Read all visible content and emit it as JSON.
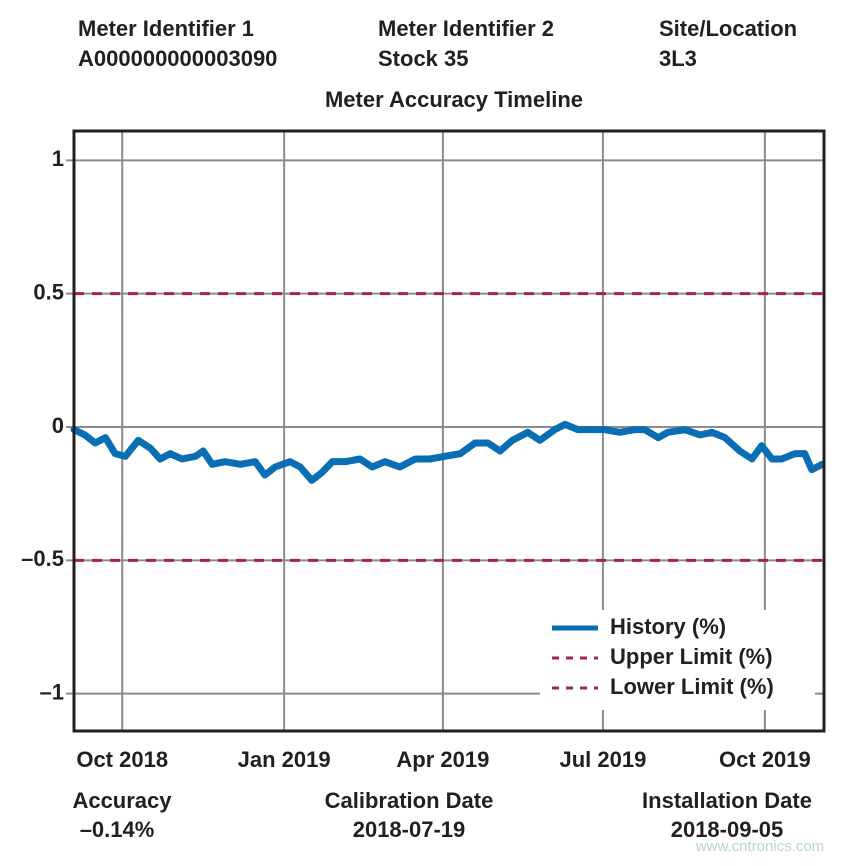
{
  "header": {
    "fields": [
      {
        "label": "Meter Identifier 1",
        "value": "A000000000003090"
      },
      {
        "label": "Meter Identifier 2",
        "value": "Stock 35"
      },
      {
        "label": "Site/Location",
        "value": "3L3"
      }
    ]
  },
  "chart_data": {
    "type": "line",
    "title": "Meter Accuracy Timeline",
    "xlim": [
      2018.673,
      2019.84
    ],
    "ylim": [
      -1.14,
      1.11
    ],
    "xticks": [
      {
        "value": 2018.748,
        "label": "Oct 2018"
      },
      {
        "value": 2019.0,
        "label": "Jan 2019"
      },
      {
        "value": 2019.247,
        "label": "Apr 2019"
      },
      {
        "value": 2019.496,
        "label": "Jul 2019"
      },
      {
        "value": 2019.748,
        "label": "Oct 2019"
      }
    ],
    "yticks": [
      {
        "value": -1,
        "label": "–1"
      },
      {
        "value": -0.5,
        "label": "–0.5"
      },
      0,
      0.5,
      1
    ],
    "grid": true,
    "legend": "lower right",
    "series": [
      {
        "name": "History (%)",
        "color": "#0a6eb4",
        "dash": false,
        "x": [
          2018.673,
          2018.69,
          2018.706,
          2018.722,
          2018.737,
          2018.753,
          2018.773,
          2018.792,
          2018.807,
          2018.823,
          2018.841,
          2018.862,
          2018.874,
          2018.888,
          2018.908,
          2018.932,
          2018.955,
          2018.97,
          2018.986,
          2019.009,
          2019.025,
          2019.043,
          2019.059,
          2019.075,
          2019.095,
          2019.118,
          2019.137,
          2019.157,
          2019.18,
          2019.204,
          2019.227,
          2019.25,
          2019.274,
          2019.297,
          2019.317,
          2019.336,
          2019.355,
          2019.379,
          2019.398,
          2019.421,
          2019.437,
          2019.457,
          2019.476,
          2019.499,
          2019.522,
          2019.545,
          2019.561,
          2019.582,
          2019.597,
          2019.624,
          2019.647,
          2019.666,
          2019.686,
          2019.709,
          2019.728,
          2019.743,
          2019.759,
          2019.774,
          2019.795,
          2019.81,
          2019.821,
          2019.837
        ],
        "values": [
          -0.01,
          -0.03,
          -0.06,
          -0.04,
          -0.1,
          -0.11,
          -0.05,
          -0.08,
          -0.12,
          -0.1,
          -0.12,
          -0.11,
          -0.09,
          -0.14,
          -0.13,
          -0.14,
          -0.13,
          -0.18,
          -0.15,
          -0.13,
          -0.15,
          -0.2,
          -0.17,
          -0.13,
          -0.13,
          -0.12,
          -0.15,
          -0.13,
          -0.15,
          -0.12,
          -0.12,
          -0.11,
          -0.1,
          -0.06,
          -0.06,
          -0.09,
          -0.05,
          -0.02,
          -0.05,
          -0.01,
          0.01,
          -0.01,
          -0.01,
          -0.01,
          -0.02,
          -0.01,
          -0.01,
          -0.04,
          -0.02,
          -0.01,
          -0.03,
          -0.02,
          -0.04,
          -0.09,
          -0.12,
          -0.07,
          -0.12,
          -0.12,
          -0.1,
          -0.1,
          -0.16,
          -0.14
        ]
      },
      {
        "name": "Upper Limit (%)",
        "color": "#a8224a",
        "dash": true,
        "x": [
          2018.673,
          2019.84
        ],
        "values": [
          0.5,
          0.5
        ]
      },
      {
        "name": "Lower Limit (%)",
        "color": "#a8224a",
        "dash": true,
        "x": [
          2018.673,
          2019.84
        ],
        "values": [
          -0.5,
          -0.5
        ]
      }
    ]
  },
  "footer": {
    "fields": [
      {
        "label": "Accuracy",
        "value": "–0.14%"
      },
      {
        "label": "Calibration Date",
        "value": "2018-07-19"
      },
      {
        "label": "Installation Date",
        "value": "2018-09-05"
      }
    ]
  },
  "watermark": "www.cntronics.com"
}
